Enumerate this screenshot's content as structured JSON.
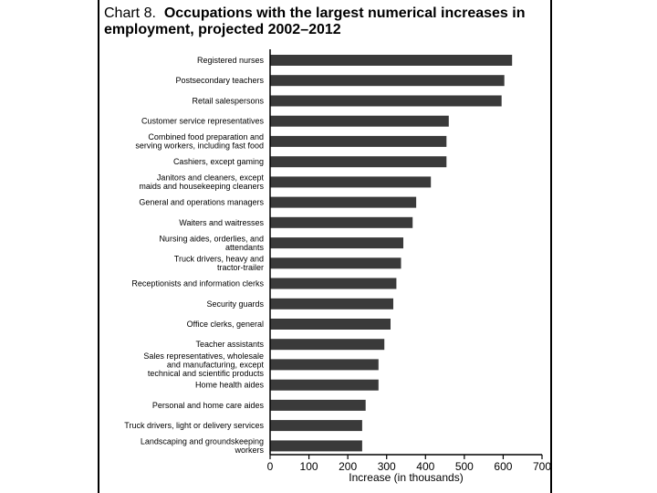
{
  "chart_data": {
    "type": "bar",
    "orientation": "horizontal",
    "title_prefix": "Chart 8.",
    "title": "Occupations with the largest numerical increases in employment, projected 2002–2012",
    "xlabel": "Increase (in thousands)",
    "ylabel": "",
    "xlim": [
      0,
      700
    ],
    "xticks": [
      "0",
      "100",
      "200",
      "300",
      "400",
      "500",
      "600",
      "700"
    ],
    "grid": false,
    "bar_color": "#3a3a3a",
    "categories": [
      [
        "Registered nurses"
      ],
      [
        "Postsecondary teachers"
      ],
      [
        "Retail salespersons"
      ],
      [
        "Customer service representatives"
      ],
      [
        "Combined food preparation and",
        "serving workers, including fast food"
      ],
      [
        "Cashiers, except gaming"
      ],
      [
        "Janitors and cleaners, except",
        "maids and housekeeping cleaners"
      ],
      [
        "General and operations managers"
      ],
      [
        "Waiters and waitresses"
      ],
      [
        "Nursing aides, orderlies, and",
        "attendants"
      ],
      [
        "Truck drivers, heavy and",
        "tractor-trailer"
      ],
      [
        "Receptionists and information clerks"
      ],
      [
        "Security guards"
      ],
      [
        "Office clerks, general"
      ],
      [
        "Teacher assistants"
      ],
      [
        "Sales representatives, wholesale",
        "and manufacturing, except",
        "technical and scientific products"
      ],
      [
        "Home health aides"
      ],
      [
        "Personal and home care aides"
      ],
      [
        "Truck drivers, light or delivery services"
      ],
      [
        "Landscaping and groundskeeping",
        "workers"
      ]
    ],
    "values": [
      623,
      603,
      596,
      460,
      454,
      454,
      414,
      376,
      367,
      343,
      337,
      325,
      317,
      310,
      294,
      279,
      279,
      246,
      237,
      237
    ]
  }
}
